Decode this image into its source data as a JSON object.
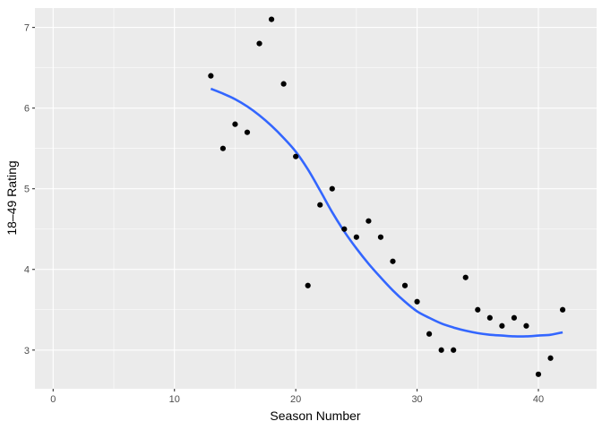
{
  "chart_data": {
    "type": "scatter",
    "xlabel": "Season Number",
    "ylabel": "18–49 Rating",
    "xlim": [
      -1.5,
      44.8
    ],
    "ylim": [
      2.52,
      7.24
    ],
    "x_ticks": [
      0,
      10,
      20,
      30,
      40
    ],
    "x_tick_labels": [
      "0",
      "10",
      "20",
      "30",
      "40"
    ],
    "y_ticks": [
      3,
      4,
      5,
      6,
      7
    ],
    "y_tick_labels": [
      "3",
      "4",
      "5",
      "6",
      "7"
    ],
    "grid": true,
    "points": [
      {
        "x": 13,
        "y": 6.4
      },
      {
        "x": 14,
        "y": 5.5
      },
      {
        "x": 15,
        "y": 5.8
      },
      {
        "x": 16,
        "y": 5.7
      },
      {
        "x": 17,
        "y": 6.8
      },
      {
        "x": 18,
        "y": 7.1
      },
      {
        "x": 19,
        "y": 6.3
      },
      {
        "x": 20,
        "y": 5.4
      },
      {
        "x": 21,
        "y": 3.8
      },
      {
        "x": 22,
        "y": 4.8
      },
      {
        "x": 23,
        "y": 5.0
      },
      {
        "x": 24,
        "y": 4.5
      },
      {
        "x": 25,
        "y": 4.4
      },
      {
        "x": 26,
        "y": 4.6
      },
      {
        "x": 27,
        "y": 4.4
      },
      {
        "x": 28,
        "y": 4.1
      },
      {
        "x": 29,
        "y": 3.8
      },
      {
        "x": 30,
        "y": 3.6
      },
      {
        "x": 31,
        "y": 3.2
      },
      {
        "x": 32,
        "y": 3.0
      },
      {
        "x": 33,
        "y": 3.0
      },
      {
        "x": 34,
        "y": 3.9
      },
      {
        "x": 35,
        "y": 3.5
      },
      {
        "x": 36,
        "y": 3.4
      },
      {
        "x": 37,
        "y": 3.3
      },
      {
        "x": 38,
        "y": 3.4
      },
      {
        "x": 39,
        "y": 3.3
      },
      {
        "x": 40,
        "y": 2.7
      },
      {
        "x": 41,
        "y": 2.9
      },
      {
        "x": 42,
        "y": 3.5
      }
    ],
    "smooth_line": {
      "color": "#3366FF",
      "points": [
        {
          "x": 13,
          "y": 6.24
        },
        {
          "x": 14,
          "y": 6.18
        },
        {
          "x": 15,
          "y": 6.11
        },
        {
          "x": 16,
          "y": 6.02
        },
        {
          "x": 17,
          "y": 5.91
        },
        {
          "x": 18,
          "y": 5.78
        },
        {
          "x": 19,
          "y": 5.63
        },
        {
          "x": 20,
          "y": 5.46
        },
        {
          "x": 21,
          "y": 5.24
        },
        {
          "x": 22,
          "y": 4.98
        },
        {
          "x": 23,
          "y": 4.71
        },
        {
          "x": 24,
          "y": 4.47
        },
        {
          "x": 25,
          "y": 4.26
        },
        {
          "x": 26,
          "y": 4.07
        },
        {
          "x": 27,
          "y": 3.9
        },
        {
          "x": 28,
          "y": 3.74
        },
        {
          "x": 29,
          "y": 3.6
        },
        {
          "x": 30,
          "y": 3.48
        },
        {
          "x": 31,
          "y": 3.4
        },
        {
          "x": 32,
          "y": 3.33
        },
        {
          "x": 33,
          "y": 3.28
        },
        {
          "x": 34,
          "y": 3.24
        },
        {
          "x": 35,
          "y": 3.21
        },
        {
          "x": 36,
          "y": 3.19
        },
        {
          "x": 37,
          "y": 3.18
        },
        {
          "x": 38,
          "y": 3.17
        },
        {
          "x": 39,
          "y": 3.17
        },
        {
          "x": 40,
          "y": 3.18
        },
        {
          "x": 41,
          "y": 3.19
        },
        {
          "x": 42,
          "y": 3.22
        }
      ]
    },
    "colors": {
      "panel_background": "#EBEBEB",
      "grid_major": "#FFFFFF",
      "point": "#000000",
      "line": "#3366FF"
    }
  }
}
